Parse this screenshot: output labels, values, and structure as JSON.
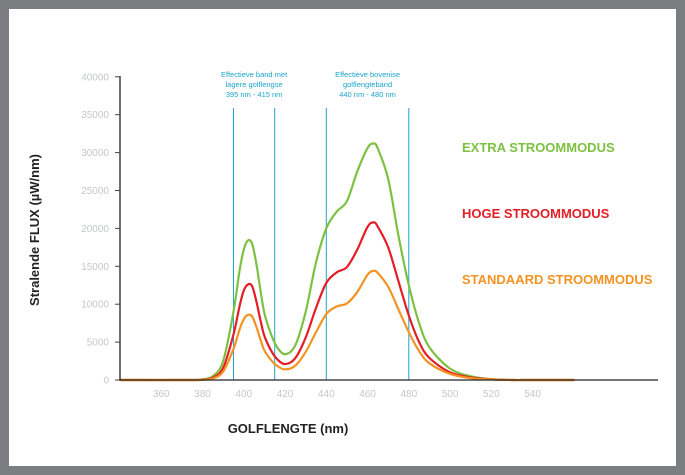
{
  "chart_data": {
    "type": "line",
    "ylabel": "Stralende FLUX (µW/nm)",
    "xlabel": "GOLFLENGTE (nm)",
    "xlim": [
      340,
      560
    ],
    "ylim": [
      0,
      40000
    ],
    "x_ticks": [
      360,
      380,
      400,
      420,
      440,
      460,
      480,
      500,
      520,
      540
    ],
    "y_ticks": [
      0,
      5000,
      10000,
      15000,
      20000,
      25000,
      30000,
      35000,
      40000
    ],
    "grid": false,
    "legend_placement": "right",
    "series": [
      {
        "name": "EXTRA STROOMMODUS",
        "color": "#7dc142",
        "x": [
          340,
          375,
          380,
          385,
          390,
          395,
          398,
          400,
          402,
          404,
          406,
          408,
          410,
          413,
          416,
          420,
          425,
          430,
          435,
          440,
          445,
          450,
          455,
          460,
          463,
          465,
          470,
          475,
          480,
          485,
          490,
          500,
          510,
          520,
          530,
          540,
          560
        ],
        "y": [
          0,
          0,
          100,
          500,
          2500,
          9000,
          14500,
          17200,
          18400,
          18000,
          15500,
          12000,
          8800,
          6200,
          4400,
          3400,
          4600,
          9000,
          15500,
          20000,
          22200,
          23600,
          27500,
          30600,
          31200,
          30500,
          26500,
          19000,
          12500,
          7500,
          4300,
          1500,
          500,
          100,
          0,
          0,
          0
        ]
      },
      {
        "name": "HOGE STROOMMODUS",
        "color": "#e31e26",
        "x": [
          340,
          375,
          380,
          385,
          390,
          395,
          398,
          400,
          402,
          404,
          406,
          408,
          410,
          413,
          416,
          420,
          425,
          430,
          435,
          440,
          445,
          450,
          455,
          460,
          463,
          465,
          470,
          475,
          480,
          485,
          490,
          500,
          510,
          520,
          530,
          540,
          560
        ],
        "y": [
          0,
          0,
          50,
          300,
          1600,
          6000,
          9800,
          11800,
          12600,
          12400,
          10500,
          8000,
          5800,
          4000,
          2800,
          2100,
          2900,
          5600,
          9500,
          12800,
          14200,
          14900,
          17200,
          20200,
          20800,
          20200,
          17500,
          13000,
          8500,
          5000,
          2900,
          1000,
          350,
          100,
          0,
          0,
          0
        ]
      },
      {
        "name": "STANDAARD STROOMMODUS",
        "color": "#f39323",
        "x": [
          340,
          375,
          380,
          385,
          390,
          395,
          398,
          400,
          402,
          404,
          406,
          408,
          410,
          413,
          416,
          420,
          425,
          430,
          435,
          440,
          445,
          450,
          455,
          460,
          463,
          465,
          470,
          475,
          480,
          485,
          490,
          500,
          510,
          520,
          530,
          540,
          560
        ],
        "y": [
          0,
          0,
          30,
          200,
          1100,
          4100,
          6700,
          8000,
          8600,
          8400,
          7100,
          5400,
          3900,
          2700,
          1900,
          1400,
          1900,
          3700,
          6300,
          8700,
          9700,
          10100,
          11600,
          13900,
          14400,
          14100,
          12300,
          9300,
          6300,
          3800,
          2200,
          800,
          250,
          80,
          0,
          0,
          0
        ]
      }
    ],
    "bands": [
      {
        "label_lines": [
          "Effectieve band met",
          "lagere golflengse",
          "395 nm - 415 nm"
        ],
        "x_start": 395,
        "x_end": 415
      },
      {
        "label_lines": [
          "Effectieve bovenise",
          "golflengteband",
          "440 nm - 480 nm"
        ],
        "x_start": 440,
        "x_end": 480
      }
    ]
  }
}
